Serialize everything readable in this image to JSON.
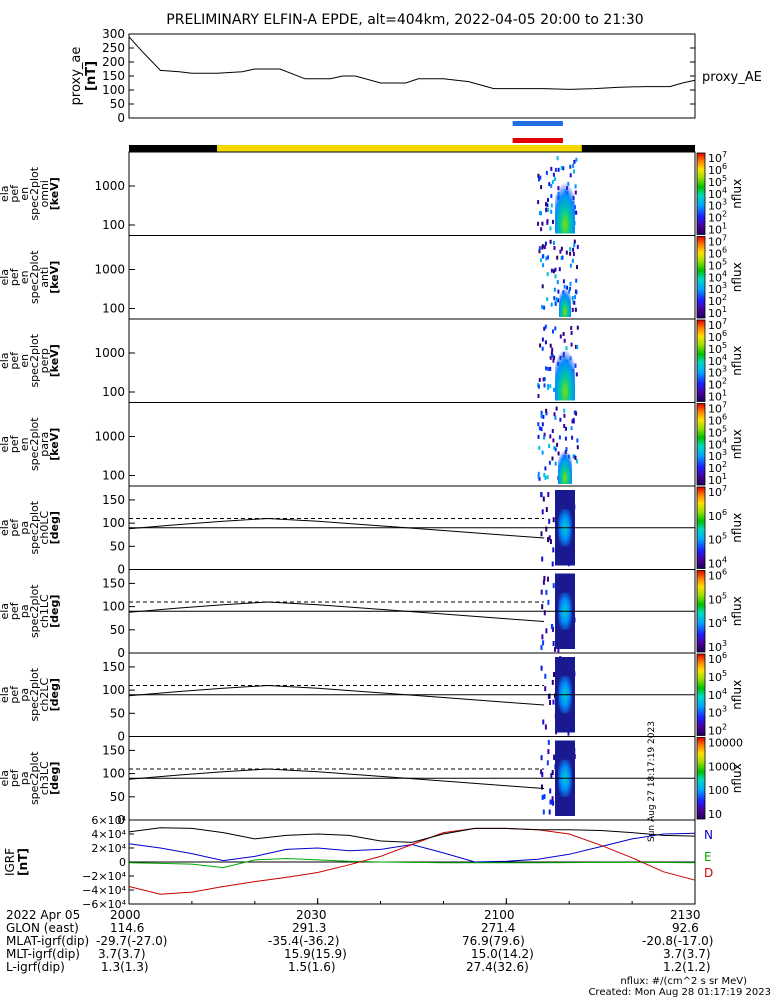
{
  "title": "PRELIMINARY ELFIN-A EPDE, alt=404km, 2022-04-05 20:00 to 21:30",
  "colors": {
    "night_bar": "#000000",
    "day_bar": "#f5d800",
    "blue_marker": "#1f6fe0",
    "red_marker": "#e00000",
    "bfield_N": "#0000cc",
    "bfield_E": "#00aa00",
    "bfield_D": "#cc0000"
  },
  "time_axis": {
    "range": [
      "20:00",
      "21:30"
    ],
    "tick_labels": [
      "2000",
      "2030",
      "2100",
      "2130"
    ]
  },
  "markers": {
    "blue": [
      "21:01",
      "21:09"
    ],
    "red": [
      "21:01",
      "21:09"
    ],
    "day_region": [
      "20:14",
      "21:12"
    ]
  },
  "panels": {
    "proxy_ae": {
      "ylabel": [
        "proxy_ae",
        "[nT]"
      ],
      "yticks": [
        "300",
        "250",
        "200",
        "150",
        "100",
        "50",
        "0"
      ],
      "legend": "proxy_AE"
    },
    "spectrograms": [
      {
        "ylabel": [
          "ela",
          "pef",
          "en",
          "spec2plot",
          "omni",
          "[keV]"
        ],
        "yticks": [
          "1000",
          "100"
        ],
        "cticks": [
          "10",
          "10",
          "10",
          "10",
          "10",
          "10",
          "10"
        ],
        "cexp": [
          "7",
          "6",
          "5",
          "4",
          "3",
          "2",
          "1"
        ],
        "cbar_label": "nflux"
      },
      {
        "ylabel": [
          "ela",
          "pef",
          "en",
          "spec2plot",
          "anti",
          "[keV]"
        ],
        "yticks": [
          "1000",
          "100"
        ],
        "cticks": [
          "10",
          "10",
          "10",
          "10",
          "10",
          "10",
          "10"
        ],
        "cexp": [
          "7",
          "6",
          "5",
          "4",
          "3",
          "2",
          "1"
        ],
        "cbar_label": "nflux"
      },
      {
        "ylabel": [
          "ela",
          "pef",
          "en",
          "spec2plot",
          "perp",
          "[keV]"
        ],
        "yticks": [
          "1000",
          "100"
        ],
        "cticks": [
          "10",
          "10",
          "10",
          "10",
          "10",
          "10",
          "10"
        ],
        "cexp": [
          "7",
          "6",
          "5",
          "4",
          "3",
          "2",
          "1"
        ],
        "cbar_label": "nflux"
      },
      {
        "ylabel": [
          "ela",
          "pef",
          "en",
          "spec2plot",
          "para",
          "[keV]"
        ],
        "yticks": [
          "1000",
          "100"
        ],
        "cticks": [
          "10",
          "10",
          "10",
          "10",
          "10",
          "10",
          "10"
        ],
        "cexp": [
          "7",
          "6",
          "5",
          "4",
          "3",
          "2",
          "1"
        ],
        "cbar_label": "nflux"
      }
    ],
    "pitch_angle": [
      {
        "ylabel": [
          "ela",
          "pef",
          "pa",
          "spec2plot",
          "ch0LC",
          "[deg]"
        ],
        "yticks": [
          "150",
          "100",
          "50",
          "0"
        ],
        "cticks": [
          "10",
          "10",
          "10",
          "10"
        ],
        "cexp": [
          "7",
          "6",
          "5",
          "4"
        ],
        "cbar_label": "nflux"
      },
      {
        "ylabel": [
          "ela",
          "pef",
          "pa",
          "spec2plot",
          "ch1LC",
          "[deg]"
        ],
        "yticks": [
          "150",
          "100",
          "50",
          "0"
        ],
        "cticks": [
          "10",
          "10",
          "10",
          "10"
        ],
        "cexp": [
          "6",
          "5",
          "4",
          "3"
        ],
        "cbar_label": "nflux"
      },
      {
        "ylabel": [
          "ela",
          "pef",
          "pa",
          "spec2plot",
          "ch2LC",
          "[deg]"
        ],
        "yticks": [
          "150",
          "100",
          "50",
          "0"
        ],
        "cticks": [
          "10",
          "10",
          "10",
          "10",
          "10"
        ],
        "cexp": [
          "6",
          "5",
          "4",
          "3",
          "2"
        ],
        "cbar_label": "nflux"
      },
      {
        "ylabel": [
          "ela",
          "pef",
          "pa",
          "spec2plot",
          "ch3LC",
          "[deg]"
        ],
        "yticks": [
          "150",
          "100",
          "50",
          "0"
        ],
        "cticks": [
          "10000",
          "1000",
          "100",
          "10"
        ],
        "cexp": [],
        "cbar_label": "nflux"
      }
    ],
    "bfield": {
      "ylabel": [
        "IGRF",
        "[nT]"
      ],
      "yticks": [
        "6×10⁴",
        "4×10⁴",
        "2×10⁴",
        "0",
        "−2×10⁴",
        "−4×10⁴",
        "−6×10⁴"
      ],
      "legend": [
        "N",
        "E",
        "D"
      ]
    }
  },
  "chart_data": {
    "type": "line",
    "title": "PRELIMINARY ELFIN-A EPDE, alt=404km, 2022-04-05 20:00 to 21:30",
    "x_unit": "minutes after 20:00",
    "xlim": [
      0,
      90
    ],
    "proxy_ae": {
      "ylim": [
        0,
        300
      ],
      "x": [
        0,
        2,
        5,
        8,
        10,
        14,
        18,
        20,
        22,
        24,
        28,
        32,
        34,
        36,
        40,
        44,
        46,
        50,
        54,
        58,
        62,
        66,
        70,
        74,
        78,
        82,
        86,
        88,
        90
      ],
      "values": [
        290,
        240,
        170,
        165,
        160,
        160,
        165,
        175,
        175,
        175,
        140,
        140,
        150,
        150,
        125,
        125,
        140,
        140,
        130,
        105,
        105,
        105,
        102,
        105,
        110,
        112,
        112,
        125,
        135
      ]
    },
    "bfield": {
      "ylim": [
        -60000,
        60000
      ],
      "x": [
        0,
        5,
        10,
        15,
        20,
        25,
        30,
        35,
        40,
        45,
        50,
        55,
        60,
        65,
        70,
        75,
        80,
        85,
        90
      ],
      "series": [
        {
          "name": "N",
          "values": [
            26000,
            20000,
            12000,
            2000,
            8000,
            18000,
            20000,
            16000,
            18000,
            25000,
            13000,
            0,
            1000,
            4000,
            11000,
            22000,
            33000,
            40000,
            41000
          ]
        },
        {
          "name": "E",
          "values": [
            -1000,
            -2000,
            -3000,
            -8000,
            3000,
            5000,
            3000,
            1000,
            0,
            -500,
            -1000,
            -1200,
            -1200,
            -1000,
            -800,
            -600,
            -600,
            -700,
            -1000
          ]
        },
        {
          "name": "D",
          "values": [
            -35000,
            -46000,
            -43000,
            -35000,
            -28000,
            -22000,
            -15000,
            -4000,
            8000,
            25000,
            42000,
            48000,
            48000,
            46000,
            40000,
            24000,
            6000,
            -14000,
            -26000
          ]
        },
        {
          "name": "",
          "values": [
            43000,
            49000,
            48000,
            42000,
            33000,
            38000,
            40000,
            38000,
            30000,
            28000,
            40000,
            48000,
            48000,
            46000,
            46000,
            45000,
            42000,
            38000,
            37000
          ]
        }
      ]
    },
    "pitch_angle": {
      "ylim": [
        0,
        180
      ],
      "dashed_x": [
        0,
        66
      ],
      "dashed_y": 110,
      "loss_cone_x": [
        0,
        8,
        15,
        22,
        30,
        40,
        50,
        60,
        66
      ],
      "loss_cone_y": [
        88,
        97,
        104,
        110,
        104,
        94,
        84,
        74,
        68
      ]
    }
  },
  "footer": {
    "rows": [
      [
        "2022 Apr 05",
        "2000",
        "2030",
        "2100",
        "2130"
      ],
      [
        "GLON (east)",
        "114.6",
        "291.3",
        "271.4",
        "92.6"
      ],
      [
        "MLAT-igrf(dip)",
        "-29.7(-27.0)",
        "-35.4(-36.2)",
        "76.9(79.6)",
        "-20.8(-17.0)"
      ],
      [
        "MLT-igrf(dip)",
        "3.7(3.7)",
        "15.9(15.9)",
        "15.0(14.2)",
        "3.7(3.7)"
      ],
      [
        "L-igrf(dip)",
        "1.3(1.3)",
        "1.5(1.6)",
        "27.4(32.6)",
        "1.2(1.2)"
      ]
    ],
    "units_note": "nflux: #/(cm^2 s sr MeV)",
    "created": "Created: Mon Aug 28 01:17:19 2023",
    "side_stamp": "Sun Aug 27 18:17:19 2023"
  }
}
